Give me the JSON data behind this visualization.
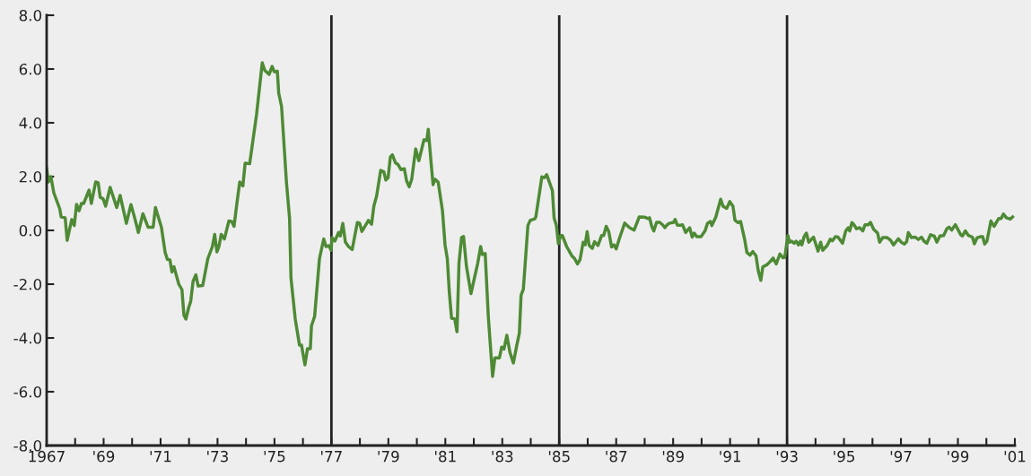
{
  "chart_data": {
    "type": "line",
    "x": [
      1967.0,
      1967.06,
      1967.15,
      1967.25,
      1967.46,
      1967.51,
      1967.65,
      1967.72,
      1967.88,
      1967.97,
      1968.05,
      1968.14,
      1968.22,
      1968.3,
      1968.49,
      1968.57,
      1968.72,
      1968.81,
      1968.88,
      1968.98,
      1969.07,
      1969.23,
      1969.46,
      1969.58,
      1969.8,
      1969.96,
      1970.09,
      1970.22,
      1970.38,
      1970.56,
      1970.74,
      1970.82,
      1971.03,
      1971.16,
      1971.24,
      1971.33,
      1971.4,
      1971.47,
      1971.64,
      1971.75,
      1971.82,
      1971.89,
      1971.98,
      1972.06,
      1972.14,
      1972.24,
      1972.32,
      1972.48,
      1972.66,
      1972.82,
      1972.9,
      1972.98,
      1973.05,
      1973.13,
      1973.24,
      1973.4,
      1973.5,
      1973.58,
      1973.68,
      1973.78,
      1973.89,
      1973.97,
      1974.13,
      1974.37,
      1974.57,
      1974.66,
      1974.81,
      1974.92,
      1974.99,
      1975.1,
      1975.15,
      1975.25,
      1975.42,
      1975.53,
      1975.58,
      1975.73,
      1975.88,
      1975.95,
      1976.07,
      1976.16,
      1976.26,
      1976.3,
      1976.41,
      1976.58,
      1976.73,
      1976.81,
      1976.91,
      1976.99,
      1977.02,
      1977.12,
      1977.25,
      1977.31,
      1977.4,
      1977.49,
      1977.6,
      1977.73,
      1977.91,
      1977.99,
      1978.07,
      1978.3,
      1978.41,
      1978.49,
      1978.59,
      1978.73,
      1978.84,
      1978.91,
      1978.99,
      1979.07,
      1979.14,
      1979.25,
      1979.33,
      1979.44,
      1979.56,
      1979.64,
      1979.73,
      1979.82,
      1979.96,
      1980.07,
      1980.25,
      1980.35,
      1980.4,
      1980.51,
      1980.57,
      1980.64,
      1980.75,
      1980.9,
      1980.99,
      1981.07,
      1981.14,
      1981.22,
      1981.33,
      1981.41,
      1981.48,
      1981.57,
      1981.64,
      1981.74,
      1981.9,
      1982.14,
      1982.24,
      1982.3,
      1982.4,
      1982.51,
      1982.66,
      1982.74,
      1982.9,
      1982.98,
      1983.06,
      1983.16,
      1983.27,
      1983.39,
      1983.51,
      1983.6,
      1983.66,
      1983.74,
      1983.9,
      1983.98,
      1984.14,
      1984.18,
      1984.39,
      1984.48,
      1984.56,
      1984.76,
      1984.82,
      1984.9,
      1984.97,
      1985.05,
      1985.11,
      1985.26,
      1985.44,
      1985.54,
      1985.64,
      1985.73,
      1985.84,
      1985.91,
      1985.98,
      1986.05,
      1986.16,
      1986.24,
      1986.36,
      1986.49,
      1986.56,
      1986.65,
      1986.74,
      1986.84,
      1986.92,
      1987.0,
      1987.11,
      1987.3,
      1987.47,
      1987.63,
      1987.81,
      1988.01,
      1988.12,
      1988.17,
      1988.25,
      1988.32,
      1988.42,
      1988.53,
      1988.63,
      1988.71,
      1988.79,
      1988.88,
      1989.01,
      1989.07,
      1989.15,
      1989.26,
      1989.33,
      1989.44,
      1989.58,
      1989.67,
      1989.74,
      1989.83,
      1989.98,
      1990.12,
      1990.21,
      1990.31,
      1990.36,
      1990.5,
      1990.67,
      1990.75,
      1990.88,
      1990.99,
      1991.1,
      1991.17,
      1991.28,
      1991.37,
      1991.51,
      1991.59,
      1991.7,
      1991.8,
      1991.91,
      1991.99,
      1992.08,
      1992.15,
      1992.29,
      1992.4,
      1992.51,
      1992.62,
      1992.75,
      1992.86,
      1992.92,
      1993.03,
      1993.09,
      1993.16,
      1993.25,
      1993.32,
      1993.4,
      1993.47,
      1993.52,
      1993.6,
      1993.68,
      1993.76,
      1993.93,
      1994.09,
      1994.18,
      1994.25,
      1994.41,
      1994.52,
      1994.59,
      1994.7,
      1994.79,
      1994.95,
      1995.06,
      1995.15,
      1995.2,
      1995.28,
      1995.35,
      1995.44,
      1995.55,
      1995.66,
      1995.74,
      1995.85,
      1995.93,
      1996.04,
      1996.18,
      1996.25,
      1996.36,
      1996.52,
      1996.63,
      1996.74,
      1996.91,
      1997.01,
      1997.12,
      1997.2,
      1997.26,
      1997.37,
      1997.5,
      1997.61,
      1997.72,
      1997.81,
      1997.91,
      1998.04,
      1998.17,
      1998.26,
      1998.37,
      1998.5,
      1998.61,
      1998.69,
      1998.78,
      1998.91,
      1999.1,
      1999.16,
      1999.26,
      1999.37,
      1999.51,
      1999.58,
      1999.67,
      1999.81,
      1999.87,
      1999.94,
      2000.02,
      2000.16,
      2000.27,
      2000.43,
      2000.52,
      2000.6,
      2000.7,
      2000.84,
      2000.92
    ],
    "series": [
      {
        "color": "#4e8a35",
        "values": [
          2.3,
          1.8,
          2.0,
          1.4,
          0.8,
          0.5,
          0.47,
          -0.37,
          0.4,
          0.18,
          0.97,
          0.73,
          1.0,
          1.0,
          1.5,
          1.0,
          1.8,
          1.77,
          1.23,
          1.18,
          0.9,
          1.6,
          0.85,
          1.3,
          0.26,
          0.96,
          0.47,
          -0.08,
          0.62,
          0.12,
          0.12,
          0.85,
          0.12,
          -0.82,
          -1.08,
          -1.1,
          -1.55,
          -1.35,
          -2.0,
          -2.2,
          -3.15,
          -3.3,
          -2.9,
          -2.63,
          -1.9,
          -1.65,
          -2.07,
          -2.05,
          -1.05,
          -0.6,
          -0.15,
          -0.8,
          -0.6,
          -0.15,
          -0.32,
          0.35,
          0.33,
          0.15,
          1.0,
          1.8,
          1.65,
          2.5,
          2.48,
          4.3,
          6.23,
          5.95,
          5.8,
          6.1,
          5.9,
          5.92,
          5.1,
          4.6,
          1.8,
          0.45,
          -1.77,
          -3.3,
          -4.27,
          -4.27,
          -5.0,
          -4.4,
          -4.4,
          -3.55,
          -3.2,
          -1.05,
          -0.32,
          -0.6,
          -0.57,
          -0.74,
          -0.27,
          -0.4,
          -0.08,
          -0.21,
          0.26,
          -0.43,
          -0.6,
          -0.71,
          0.29,
          0.27,
          -0.04,
          0.37,
          0.23,
          0.9,
          1.29,
          2.23,
          2.18,
          1.87,
          1.96,
          2.73,
          2.81,
          2.51,
          2.46,
          2.26,
          2.29,
          1.84,
          1.62,
          1.9,
          3.03,
          2.59,
          3.37,
          3.34,
          3.76,
          2.4,
          1.7,
          1.9,
          1.79,
          0.73,
          -0.54,
          -1.05,
          -2.3,
          -3.27,
          -3.29,
          -3.77,
          -1.21,
          -0.27,
          -0.23,
          -1.32,
          -2.35,
          -1.21,
          -0.6,
          -0.9,
          -0.86,
          -3.21,
          -5.43,
          -4.74,
          -4.74,
          -4.34,
          -4.41,
          -3.9,
          -4.54,
          -4.93,
          -4.27,
          -3.82,
          -2.41,
          -2.19,
          0.18,
          0.37,
          0.43,
          0.51,
          1.99,
          1.96,
          2.07,
          1.48,
          0.46,
          0.18,
          -0.49,
          -0.19,
          -0.19,
          -0.6,
          -0.94,
          -1.05,
          -1.25,
          -1.09,
          -0.44,
          -0.54,
          -0.05,
          -0.56,
          -0.67,
          -0.42,
          -0.56,
          -0.19,
          -0.19,
          0.15,
          -0.05,
          -0.62,
          -0.54,
          -0.69,
          -0.31,
          0.27,
          0.1,
          0.01,
          0.5,
          0.49,
          0.44,
          0.47,
          0.15,
          -0.02,
          0.3,
          0.3,
          0.21,
          0.1,
          0.21,
          0.27,
          0.29,
          0.41,
          0.19,
          0.19,
          0.21,
          -0.08,
          0.1,
          -0.25,
          -0.1,
          -0.23,
          -0.23,
          -0.02,
          0.27,
          0.33,
          0.18,
          0.5,
          1.16,
          0.9,
          0.82,
          1.07,
          0.9,
          0.38,
          0.29,
          0.33,
          -0.33,
          -0.82,
          -0.92,
          -0.79,
          -0.94,
          -1.51,
          -1.86,
          -1.36,
          -1.28,
          -1.17,
          -1.03,
          -1.25,
          -0.88,
          -1.02,
          -1.0,
          -0.19,
          -0.44,
          -0.4,
          -0.48,
          -0.4,
          -0.54,
          -0.4,
          -0.54,
          -0.23,
          -0.1,
          -0.44,
          -0.25,
          -0.77,
          -0.44,
          -0.74,
          -0.56,
          -0.33,
          -0.39,
          -0.23,
          -0.25,
          -0.48,
          -0.02,
          0.1,
          -0.02,
          0.29,
          0.21,
          0.06,
          0.1,
          -0.02,
          0.21,
          0.21,
          0.3,
          0.04,
          -0.1,
          -0.44,
          -0.27,
          -0.27,
          -0.36,
          -0.54,
          -0.31,
          -0.44,
          -0.51,
          -0.42,
          -0.08,
          -0.27,
          -0.25,
          -0.34,
          -0.25,
          -0.4,
          -0.48,
          -0.16,
          -0.21,
          -0.44,
          -0.21,
          -0.19,
          0.06,
          0.12,
          0.01,
          0.21,
          -0.16,
          -0.21,
          -0.02,
          -0.19,
          -0.25,
          -0.5,
          -0.28,
          -0.23,
          -0.23,
          -0.51,
          -0.4,
          0.35,
          0.15,
          0.44,
          0.44,
          0.61,
          0.47,
          0.42,
          0.5
        ]
      }
    ],
    "xlim": [
      1967,
      2001
    ],
    "xticks": [
      {
        "value": 1967,
        "label": "1967"
      },
      {
        "value": 1968,
        "label": null
      },
      {
        "value": 1969,
        "label": "'69"
      },
      {
        "value": 1970,
        "label": null
      },
      {
        "value": 1971,
        "label": "'71"
      },
      {
        "value": 1972,
        "label": null
      },
      {
        "value": 1973,
        "label": "'73"
      },
      {
        "value": 1974,
        "label": null
      },
      {
        "value": 1975,
        "label": "'75"
      },
      {
        "value": 1976,
        "label": null
      },
      {
        "value": 1977,
        "label": "'77"
      },
      {
        "value": 1978,
        "label": null
      },
      {
        "value": 1979,
        "label": "'79"
      },
      {
        "value": 1980,
        "label": null
      },
      {
        "value": 1981,
        "label": "'81"
      },
      {
        "value": 1982,
        "label": null
      },
      {
        "value": 1983,
        "label": "'83"
      },
      {
        "value": 1984,
        "label": null
      },
      {
        "value": 1985,
        "label": "'85"
      },
      {
        "value": 1986,
        "label": null
      },
      {
        "value": 1987,
        "label": "'87"
      },
      {
        "value": 1988,
        "label": null
      },
      {
        "value": 1989,
        "label": "'89"
      },
      {
        "value": 1990,
        "label": null
      },
      {
        "value": 1991,
        "label": "'91"
      },
      {
        "value": 1992,
        "label": null
      },
      {
        "value": 1993,
        "label": "'93"
      },
      {
        "value": 1994,
        "label": null
      },
      {
        "value": 1995,
        "label": "'95"
      },
      {
        "value": 1996,
        "label": null
      },
      {
        "value": 1997,
        "label": "'97"
      },
      {
        "value": 1998,
        "label": null
      },
      {
        "value": 1999,
        "label": "'99"
      },
      {
        "value": 2000,
        "label": null
      },
      {
        "value": 2001,
        "label": "'01"
      }
    ],
    "ylim": [
      -8,
      8
    ],
    "yticks": [
      {
        "value": -8,
        "label": "-8.0"
      },
      {
        "value": -6,
        "label": "-6.0"
      },
      {
        "value": -4,
        "label": "-4.0"
      },
      {
        "value": -2,
        "label": "-2.0"
      },
      {
        "value": 0,
        "label": "0.0"
      },
      {
        "value": 2,
        "label": "2.0"
      },
      {
        "value": 4,
        "label": "4.0"
      },
      {
        "value": 6,
        "label": "6.0"
      },
      {
        "value": 8,
        "label": "8.0"
      }
    ],
    "ref_lines": [
      {
        "axis": "x",
        "value": 1977,
        "color": "#222222"
      },
      {
        "axis": "x",
        "value": 1985,
        "color": "#222222"
      },
      {
        "axis": "x",
        "value": 1993,
        "color": "#222222"
      }
    ],
    "grid": false,
    "legend": false,
    "marker": "none",
    "line_style": "solid"
  }
}
